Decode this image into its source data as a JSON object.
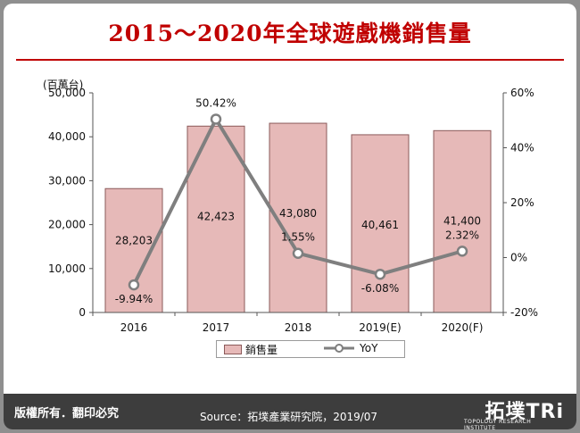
{
  "title": "2015～2020年全球遊戲機銷售量",
  "footer": {
    "rights": "版權所有．翻印必究",
    "source": "Source：拓墣產業研究院，2019/07",
    "logo": "拓墣TRi",
    "logo_sub": "TOPOLOGY RESEARCH INSTITUTE"
  },
  "colors": {
    "bar": "#e6b9b8",
    "bar_border": "#8b5a5a",
    "line": "#7f7f7f",
    "title": "#c00000"
  },
  "chart_data": {
    "type": "bar",
    "title": "2015～2020年全球遊戲機銷售量",
    "ylabel": "(百萬台)",
    "categories": [
      "2016",
      "2017",
      "2018",
      "2019(E)",
      "2020(F)"
    ],
    "series": [
      {
        "name": "銷售量",
        "type": "bar",
        "axis": "left",
        "values": [
          28203,
          42423,
          43080,
          40461,
          41400
        ],
        "labels": [
          "28,203",
          "42,423",
          "43,080",
          "40,461",
          "41,400"
        ]
      },
      {
        "name": "YoY",
        "type": "line",
        "axis": "right",
        "values": [
          -9.94,
          50.42,
          1.55,
          -6.08,
          2.32
        ],
        "labels": [
          "-9.94%",
          "50.42%",
          "1.55%",
          "-6.08%",
          "2.32%"
        ]
      }
    ],
    "ylim": [
      0,
      50000
    ],
    "y_ticks": [
      0,
      10000,
      20000,
      30000,
      40000,
      50000
    ],
    "y_tick_labels": [
      "0",
      "10,000",
      "20,000",
      "30,000",
      "40,000",
      "50,000"
    ],
    "y2lim": [
      -20,
      60
    ],
    "y2_ticks": [
      -20,
      0,
      20,
      40,
      60
    ],
    "y2_tick_labels": [
      "-20%",
      "0%",
      "20%",
      "40%",
      "60%"
    ],
    "grid": false,
    "legend": "bottom"
  }
}
